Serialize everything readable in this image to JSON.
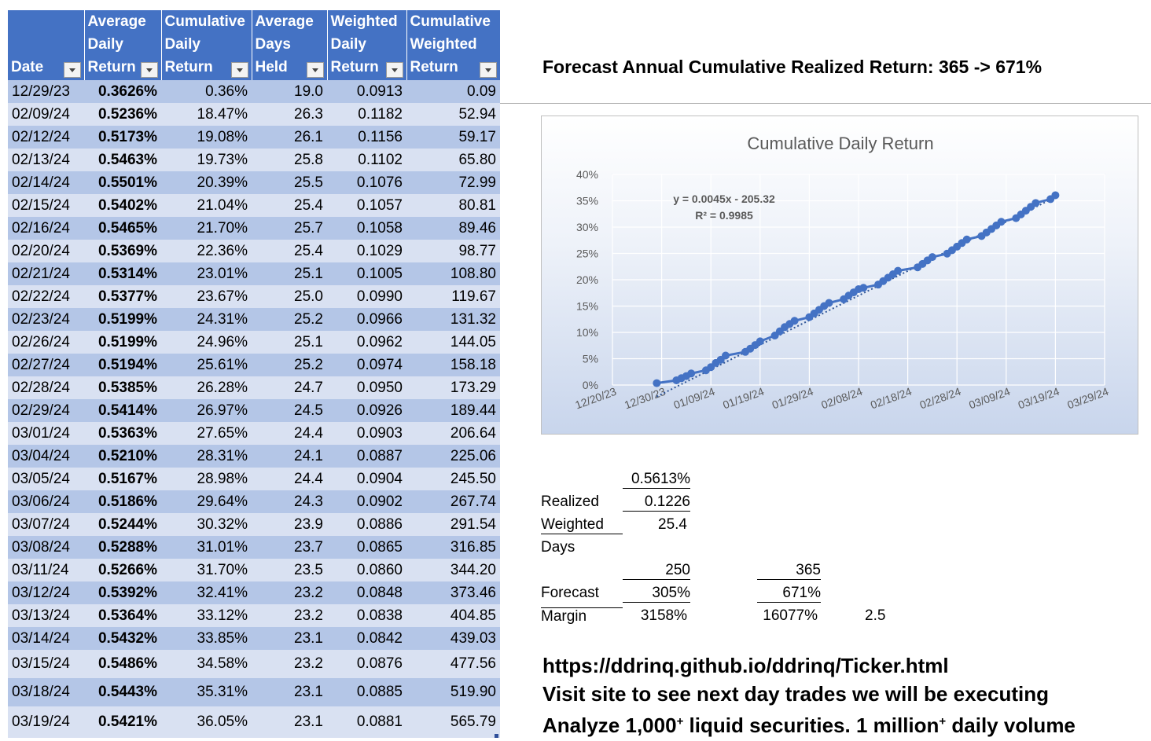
{
  "table": {
    "headers": [
      [
        "Date"
      ],
      [
        "Average",
        "Daily",
        "Return"
      ],
      [
        "Cumulative",
        "Daily",
        "Return"
      ],
      [
        "Average",
        "Days",
        "Held"
      ],
      [
        "Weighted",
        "Daily",
        "Return"
      ],
      [
        "Cumulative",
        "Weighted",
        "Return"
      ]
    ],
    "rows": [
      [
        "12/29/23",
        "0.3626%",
        "0.36%",
        "19.0",
        "0.0913",
        "0.09"
      ],
      [
        "02/09/24",
        "0.5236%",
        "18.47%",
        "26.3",
        "0.1182",
        "52.94"
      ],
      [
        "02/12/24",
        "0.5173%",
        "19.08%",
        "26.1",
        "0.1156",
        "59.17"
      ],
      [
        "02/13/24",
        "0.5463%",
        "19.73%",
        "25.8",
        "0.1102",
        "65.80"
      ],
      [
        "02/14/24",
        "0.5501%",
        "20.39%",
        "25.5",
        "0.1076",
        "72.99"
      ],
      [
        "02/15/24",
        "0.5402%",
        "21.04%",
        "25.4",
        "0.1057",
        "80.81"
      ],
      [
        "02/16/24",
        "0.5465%",
        "21.70%",
        "25.7",
        "0.1058",
        "89.46"
      ],
      [
        "02/20/24",
        "0.5369%",
        "22.36%",
        "25.4",
        "0.1029",
        "98.77"
      ],
      [
        "02/21/24",
        "0.5314%",
        "23.01%",
        "25.1",
        "0.1005",
        "108.80"
      ],
      [
        "02/22/24",
        "0.5377%",
        "23.67%",
        "25.0",
        "0.0990",
        "119.67"
      ],
      [
        "02/23/24",
        "0.5199%",
        "24.31%",
        "25.2",
        "0.0966",
        "131.32"
      ],
      [
        "02/26/24",
        "0.5199%",
        "24.96%",
        "25.1",
        "0.0962",
        "144.05"
      ],
      [
        "02/27/24",
        "0.5194%",
        "25.61%",
        "25.2",
        "0.0974",
        "158.18"
      ],
      [
        "02/28/24",
        "0.5385%",
        "26.28%",
        "24.7",
        "0.0950",
        "173.29"
      ],
      [
        "02/29/24",
        "0.5414%",
        "26.97%",
        "24.5",
        "0.0926",
        "189.44"
      ],
      [
        "03/01/24",
        "0.5363%",
        "27.65%",
        "24.4",
        "0.0903",
        "206.64"
      ],
      [
        "03/04/24",
        "0.5210%",
        "28.31%",
        "24.1",
        "0.0887",
        "225.06"
      ],
      [
        "03/05/24",
        "0.5167%",
        "28.98%",
        "24.4",
        "0.0904",
        "245.50"
      ],
      [
        "03/06/24",
        "0.5186%",
        "29.64%",
        "24.3",
        "0.0902",
        "267.74"
      ],
      [
        "03/07/24",
        "0.5244%",
        "30.32%",
        "23.9",
        "0.0886",
        "291.54"
      ],
      [
        "03/08/24",
        "0.5288%",
        "31.01%",
        "23.7",
        "0.0865",
        "316.85"
      ],
      [
        "03/11/24",
        "0.5266%",
        "31.70%",
        "23.5",
        "0.0860",
        "344.20"
      ],
      [
        "03/12/24",
        "0.5392%",
        "32.41%",
        "23.2",
        "0.0848",
        "373.46"
      ],
      [
        "03/13/24",
        "0.5364%",
        "33.12%",
        "23.2",
        "0.0838",
        "404.85"
      ],
      [
        "03/14/24",
        "0.5432%",
        "33.85%",
        "23.1",
        "0.0842",
        "439.03"
      ],
      [
        "03/15/24",
        "0.5486%",
        "34.58%",
        "23.2",
        "0.0876",
        "477.56"
      ],
      [
        "03/18/24",
        "0.5443%",
        "35.31%",
        "23.1",
        "0.0885",
        "519.90"
      ],
      [
        "03/19/24",
        "0.5421%",
        "36.05%",
        "23.1",
        "0.0881",
        "565.79"
      ]
    ]
  },
  "forecast_title": "Forecast Annual Cumulative Realized Return: 365 -> 671%",
  "chart_data": {
    "type": "line",
    "title": "Cumulative Daily Return",
    "y_ticks": [
      "0%",
      "5%",
      "10%",
      "15%",
      "20%",
      "25%",
      "30%",
      "35%",
      "40%"
    ],
    "ylim": [
      0,
      40
    ],
    "x_ticks": [
      "12/20/23",
      "12/30/23",
      "01/09/24",
      "01/19/24",
      "01/29/24",
      "02/08/24",
      "02/18/24",
      "02/28/24",
      "03/09/24",
      "03/19/24",
      "03/29/24"
    ],
    "xlim": [
      "2023-12-20",
      "2024-03-29"
    ],
    "trendline": {
      "equation": "y = 0.0045x - 205.32",
      "r2": "R² = 0.9985",
      "type": "linear"
    },
    "series": [
      {
        "x": [
          "2023-12-29",
          "2024-01-02",
          "2024-01-03",
          "2024-01-04",
          "2024-01-05",
          "2024-01-08",
          "2024-01-09",
          "2024-01-10",
          "2024-01-11",
          "2024-01-12",
          "2024-01-16",
          "2024-01-17",
          "2024-01-18",
          "2024-01-19",
          "2024-01-22",
          "2024-01-23",
          "2024-01-24",
          "2024-01-25",
          "2024-01-26",
          "2024-01-29",
          "2024-01-30",
          "2024-01-31",
          "2024-02-01",
          "2024-02-02",
          "2024-02-05",
          "2024-02-06",
          "2024-02-07",
          "2024-02-08",
          "2024-02-09",
          "2024-02-12",
          "2024-02-13",
          "2024-02-14",
          "2024-02-15",
          "2024-02-16",
          "2024-02-20",
          "2024-02-21",
          "2024-02-22",
          "2024-02-23",
          "2024-02-26",
          "2024-02-27",
          "2024-02-28",
          "2024-02-29",
          "2024-03-01",
          "2024-03-04",
          "2024-03-05",
          "2024-03-06",
          "2024-03-07",
          "2024-03-08",
          "2024-03-11",
          "2024-03-12",
          "2024-03-13",
          "2024-03-14",
          "2024-03-15",
          "2024-03-18",
          "2024-03-19"
        ],
        "y": [
          0.36,
          0.9,
          1.3,
          1.7,
          2.2,
          2.8,
          3.4,
          4.2,
          4.8,
          5.6,
          6.3,
          6.9,
          7.6,
          8.3,
          9.4,
          10.2,
          11.0,
          11.6,
          12.2,
          12.9,
          13.6,
          14.3,
          15.0,
          15.6,
          16.3,
          17.0,
          17.6,
          18.2,
          18.47,
          19.08,
          19.73,
          20.39,
          21.04,
          21.7,
          22.36,
          23.01,
          23.67,
          24.31,
          24.96,
          25.61,
          26.28,
          26.97,
          27.65,
          28.31,
          28.98,
          29.64,
          30.32,
          31.01,
          31.7,
          32.41,
          33.12,
          33.85,
          34.58,
          35.31,
          36.05
        ]
      }
    ]
  },
  "calc": {
    "avg_return": "0.5613%",
    "realized_label": "Realized",
    "realized_value": "0.1226",
    "weighted_label": "Weighted",
    "weighted_value": "25.4",
    "days_label": "Days",
    "days_250": "250",
    "days_365": "365",
    "forecast_label": "Forecast",
    "forecast_250": "305%",
    "forecast_365": "671%",
    "margin_label": "Margin",
    "margin_250": "3158%",
    "margin_365": "16077%",
    "margin_factor": "2.5"
  },
  "footer": {
    "url": "https://ddrinq.github.io/ddrinq/Ticker.html",
    "visit": "Visit site to see next day trades we will be executing",
    "analyze_a": "Analyze 1,000",
    "analyze_sup1": "+",
    "analyze_b": " liquid securities.  1 million",
    "analyze_sup2": "+",
    "analyze_c": " daily volume"
  },
  "colors": {
    "header_bg": "#4472c4",
    "row_dark": "#b4c6e7",
    "row_light": "#d9e1f2",
    "series": "#4472c4"
  }
}
